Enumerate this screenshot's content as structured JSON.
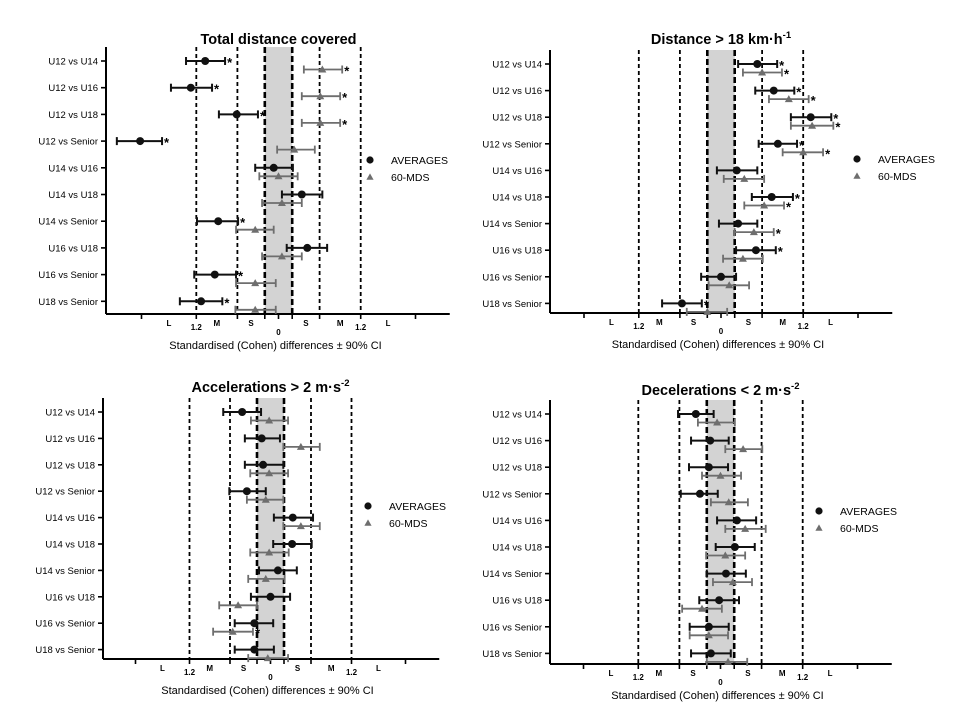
{
  "figure": {
    "legend": [
      {
        "name": "AVERAGES",
        "marker": "circle",
        "color": "#111111"
      },
      {
        "name": "60-MDS",
        "marker": "triangle",
        "color": "#6e6e6e"
      }
    ],
    "colors": {
      "averages": "#111111",
      "mds": "#6e6e6e",
      "trivial_band": "#d3d3d3",
      "axis": "#000000"
    }
  },
  "chart_data": [
    {
      "type": "scatter",
      "subtype": "forest-plot",
      "title": "Total distance covered",
      "title_superscript": "",
      "xlabel": "Standardised (Cohen) differences ± 90% CI",
      "ylabel": "",
      "xlim": [
        -2.5,
        2.5
      ],
      "threshold_lines": [
        -1.2,
        -0.6,
        -0.2,
        0.2,
        0.6,
        1.2
      ],
      "trivial_band": [
        -0.2,
        0.2
      ],
      "x_ticks": [
        -2.0,
        -1.2,
        -0.6,
        -0.2,
        0,
        0.2,
        0.6,
        1.2,
        2.0
      ],
      "x_tick_labels": [
        {
          "value": -1.2,
          "label": "1.2"
        },
        {
          "value": 0,
          "label": "0"
        },
        {
          "value": 1.2,
          "label": "1.2"
        }
      ],
      "zone_labels": [
        {
          "value": -1.6,
          "label": "L"
        },
        {
          "value": -0.9,
          "label": "M"
        },
        {
          "value": -0.4,
          "label": "S"
        },
        {
          "value": 0.4,
          "label": "S"
        },
        {
          "value": 0.9,
          "label": "M"
        },
        {
          "value": 1.6,
          "label": "L"
        }
      ],
      "legend_position": "right",
      "categories": [
        "U12 vs U14",
        "U12 vs U16",
        "U12 vs U18",
        "U12 vs Senior",
        "U14 vs U16",
        "U14 vs U18",
        "U14 vs Senior",
        "U16 vs U18",
        "U16 vs Senior",
        "U18 vs Senior"
      ],
      "series": [
        {
          "name": "AVERAGES",
          "marker": "circle",
          "values": [
            -1.07,
            -1.28,
            -0.61,
            -2.02,
            -0.07,
            0.34,
            -0.88,
            0.42,
            -0.93,
            -1.13
          ],
          "ci_low": [
            -1.35,
            -1.57,
            -0.87,
            -2.36,
            -0.34,
            0.05,
            -1.19,
            0.12,
            -1.23,
            -1.44
          ],
          "ci_high": [
            -0.78,
            -0.97,
            -0.3,
            -1.7,
            0.21,
            0.64,
            -0.59,
            0.71,
            -0.62,
            -0.82
          ],
          "significant": [
            true,
            true,
            true,
            true,
            false,
            false,
            true,
            false,
            true,
            true
          ]
        },
        {
          "name": "60-MDS",
          "marker": "triangle",
          "values": [
            0.64,
            0.61,
            0.61,
            0.23,
            0.0,
            0.05,
            -0.34,
            0.05,
            -0.34,
            -0.34
          ],
          "ci_low": [
            0.37,
            0.34,
            0.34,
            -0.02,
            -0.28,
            -0.24,
            -0.62,
            -0.24,
            -0.62,
            -0.63
          ],
          "ci_high": [
            0.93,
            0.9,
            0.9,
            0.53,
            0.28,
            0.34,
            -0.07,
            0.34,
            -0.04,
            -0.04
          ],
          "significant": [
            true,
            true,
            true,
            false,
            false,
            false,
            false,
            false,
            false,
            false
          ]
        }
      ]
    },
    {
      "type": "scatter",
      "subtype": "forest-plot",
      "title": "Distance > 18 km·h",
      "title_superscript": "-1",
      "xlabel": "Standardised (Cohen) differences ± 90% CI",
      "ylabel": "",
      "xlim": [
        -2.5,
        2.5
      ],
      "threshold_lines": [
        -1.2,
        -0.6,
        -0.2,
        0.2,
        0.6,
        1.2
      ],
      "trivial_band": [
        -0.2,
        0.2
      ],
      "x_ticks": [
        -2.0,
        -1.2,
        -0.6,
        -0.2,
        0,
        0.2,
        0.6,
        1.2,
        2.0
      ],
      "x_tick_labels": [
        {
          "value": -1.2,
          "label": "1.2"
        },
        {
          "value": 0,
          "label": "0"
        },
        {
          "value": 1.2,
          "label": "1.2"
        }
      ],
      "zone_labels": [
        {
          "value": -1.6,
          "label": "L"
        },
        {
          "value": -0.9,
          "label": "M"
        },
        {
          "value": -0.4,
          "label": "S"
        },
        {
          "value": 0.4,
          "label": "S"
        },
        {
          "value": 0.9,
          "label": "M"
        },
        {
          "value": 1.6,
          "label": "L"
        }
      ],
      "legend_position": "right",
      "categories": [
        "U12 vs U14",
        "U12 vs U16",
        "U12 vs U18",
        "U12 vs Senior",
        "U14 vs U16",
        "U14 vs U18",
        "U14 vs Senior",
        "U16 vs U18",
        "U16 vs Senior",
        "U18 vs Senior"
      ],
      "series": [
        {
          "name": "AVERAGES",
          "marker": "circle",
          "values": [
            0.53,
            0.77,
            1.31,
            0.83,
            0.23,
            0.74,
            0.25,
            0.51,
            0.0,
            -0.57
          ],
          "ci_low": [
            0.25,
            0.5,
            1.02,
            0.55,
            -0.06,
            0.45,
            -0.03,
            0.22,
            -0.29,
            -0.86
          ],
          "ci_high": [
            0.82,
            1.07,
            1.61,
            1.11,
            0.53,
            1.05,
            0.53,
            0.8,
            0.22,
            -0.28
          ],
          "significant": [
            true,
            true,
            true,
            true,
            false,
            true,
            false,
            true,
            false,
            true
          ]
        },
        {
          "name": "60-MDS",
          "marker": "triangle",
          "values": [
            0.6,
            0.99,
            1.33,
            1.2,
            0.34,
            0.63,
            0.48,
            0.32,
            0.12,
            -0.2
          ],
          "ci_low": [
            0.32,
            0.7,
            1.02,
            0.9,
            0.04,
            0.34,
            0.2,
            0.03,
            -0.18,
            -0.5
          ],
          "ci_high": [
            0.89,
            1.28,
            1.64,
            1.49,
            0.63,
            0.92,
            0.77,
            0.61,
            0.41,
            0.09
          ],
          "significant": [
            true,
            true,
            true,
            true,
            false,
            true,
            true,
            false,
            false,
            false
          ]
        }
      ]
    },
    {
      "type": "scatter",
      "subtype": "forest-plot",
      "title": "Accelerations > 2 m·s",
      "title_superscript": "-2",
      "xlabel": "Standardised (Cohen) differences ± 90% CI",
      "ylabel": "",
      "xlim": [
        -2.5,
        2.5
      ],
      "threshold_lines": [
        -1.2,
        -0.6,
        -0.2,
        0.2,
        0.6,
        1.2
      ],
      "trivial_band": [
        -0.2,
        0.2
      ],
      "x_ticks": [
        -2.0,
        -1.2,
        -0.6,
        -0.2,
        0,
        0.2,
        0.6,
        1.2,
        2.0
      ],
      "x_tick_labels": [
        {
          "value": -1.2,
          "label": "1.2"
        },
        {
          "value": 0,
          "label": "0"
        },
        {
          "value": 1.2,
          "label": "1.2"
        }
      ],
      "zone_labels": [
        {
          "value": -1.6,
          "label": "L"
        },
        {
          "value": -0.9,
          "label": "M"
        },
        {
          "value": -0.4,
          "label": "S"
        },
        {
          "value": 0.4,
          "label": "S"
        },
        {
          "value": 0.9,
          "label": "M"
        },
        {
          "value": 1.6,
          "label": "L"
        }
      ],
      "legend_position": "right",
      "categories": [
        "U12 vs U14",
        "U12 vs U16",
        "U12 vs U18",
        "U12 vs Senior",
        "U14 vs U16",
        "U14 vs U18",
        "U14 vs Senior",
        "U16 vs U18",
        "U16 vs Senior",
        "U18 vs Senior"
      ],
      "series": [
        {
          "name": "AVERAGES",
          "marker": "circle",
          "values": [
            -0.42,
            -0.13,
            -0.11,
            -0.35,
            0.33,
            0.32,
            0.11,
            0.0,
            -0.24,
            -0.24
          ],
          "ci_low": [
            -0.7,
            -0.38,
            -0.38,
            -0.61,
            0.05,
            0.04,
            -0.17,
            -0.29,
            -0.53,
            -0.53
          ],
          "ci_high": [
            -0.14,
            0.14,
            0.19,
            -0.07,
            0.63,
            0.61,
            0.39,
            0.29,
            0.04,
            0.05
          ],
          "significant": [
            false,
            false,
            false,
            false,
            false,
            false,
            false,
            false,
            false,
            false
          ]
        },
        {
          "name": "60-MDS",
          "marker": "triangle",
          "values": [
            -0.02,
            0.45,
            -0.02,
            -0.07,
            0.45,
            -0.02,
            -0.07,
            -0.48,
            -0.56,
            -0.04
          ],
          "ci_low": [
            -0.29,
            0.19,
            -0.3,
            -0.35,
            0.19,
            -0.3,
            -0.33,
            -0.76,
            -0.85,
            -0.33
          ],
          "ci_high": [
            0.26,
            0.73,
            0.26,
            0.19,
            0.73,
            0.27,
            0.21,
            -0.2,
            -0.26,
            0.26
          ],
          "significant": [
            false,
            false,
            false,
            false,
            false,
            false,
            false,
            false,
            true,
            false
          ]
        }
      ]
    },
    {
      "type": "scatter",
      "subtype": "forest-plot",
      "title": "Decelerations < 2 m·s",
      "title_superscript": "-2",
      "xlabel": "Standardised (Cohen) differences ± 90% CI",
      "ylabel": "",
      "xlim": [
        -2.5,
        2.5
      ],
      "threshold_lines": [
        -1.2,
        -0.6,
        -0.2,
        0.2,
        0.6,
        1.2
      ],
      "trivial_band": [
        -0.2,
        0.2
      ],
      "x_ticks": [
        -2.0,
        -1.2,
        -0.6,
        -0.2,
        0,
        0.2,
        0.6,
        1.2,
        2.0
      ],
      "x_tick_labels": [
        {
          "value": -1.2,
          "label": "1.2"
        },
        {
          "value": 0,
          "label": "0"
        },
        {
          "value": 1.2,
          "label": "1.2"
        }
      ],
      "zone_labels": [
        {
          "value": -1.6,
          "label": "L"
        },
        {
          "value": -0.9,
          "label": "M"
        },
        {
          "value": -0.4,
          "label": "S"
        },
        {
          "value": 0.4,
          "label": "S"
        },
        {
          "value": 0.9,
          "label": "M"
        },
        {
          "value": 1.6,
          "label": "L"
        }
      ],
      "legend_position": "right",
      "categories": [
        "U12 vs U14",
        "U12 vs U16",
        "U12 vs U18",
        "U12 vs Senior",
        "U14 vs U16",
        "U14 vs U18",
        "U14 vs Senior",
        "U16 vs U18",
        "U16 vs Senior",
        "U18 vs Senior"
      ],
      "series": [
        {
          "name": "AVERAGES",
          "marker": "circle",
          "values": [
            -0.36,
            -0.15,
            -0.17,
            -0.3,
            0.24,
            0.21,
            0.08,
            -0.02,
            -0.17,
            -0.14
          ],
          "ci_low": [
            -0.62,
            -0.43,
            -0.46,
            -0.58,
            -0.05,
            -0.07,
            -0.2,
            -0.31,
            -0.45,
            -0.43
          ],
          "ci_high": [
            -0.1,
            0.12,
            0.11,
            -0.04,
            0.52,
            0.5,
            0.37,
            0.27,
            0.12,
            0.15
          ],
          "significant": [
            false,
            false,
            false,
            false,
            false,
            false,
            false,
            false,
            false,
            false
          ]
        },
        {
          "name": "60-MDS",
          "marker": "triangle",
          "values": [
            -0.05,
            0.33,
            0.0,
            0.12,
            0.36,
            0.07,
            0.18,
            -0.27,
            -0.17,
            0.11
          ],
          "ci_low": [
            -0.33,
            0.07,
            -0.27,
            -0.14,
            0.07,
            -0.21,
            -0.11,
            -0.56,
            -0.45,
            -0.2
          ],
          "ci_high": [
            0.21,
            0.61,
            0.3,
            0.4,
            0.66,
            0.36,
            0.46,
            0.02,
            0.11,
            0.39
          ],
          "significant": [
            false,
            false,
            false,
            false,
            false,
            false,
            false,
            false,
            false,
            false
          ]
        }
      ]
    }
  ]
}
